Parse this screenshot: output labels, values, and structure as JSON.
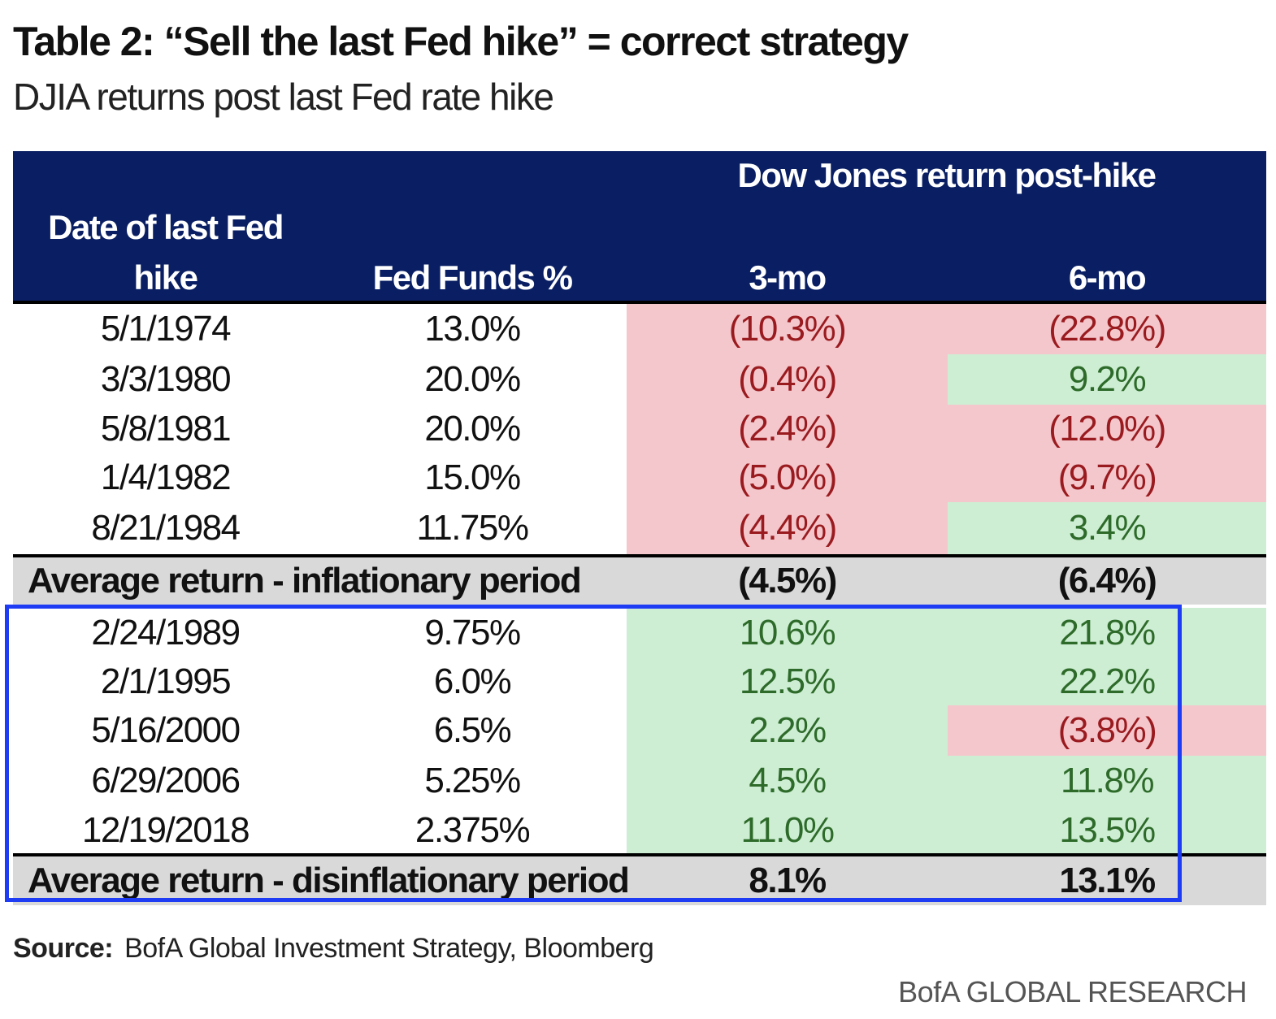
{
  "title": "Table 2: “Sell the last Fed hike” = correct strategy",
  "subtitle": "DJIA returns post last Fed rate hike",
  "headers": {
    "date_line1": "Date of last Fed",
    "date_line2": "hike",
    "fed_funds": "Fed Funds %",
    "group": "Dow Jones return post-hike",
    "three_mo": "3-mo",
    "six_mo": "6-mo"
  },
  "chart_data": {
    "type": "table",
    "columns": [
      "Date of last Fed hike",
      "Fed Funds %",
      "3-mo",
      "6-mo"
    ],
    "inflationary_rows": [
      {
        "date": "5/1/1974",
        "fed_funds": "13.0%",
        "three_mo": "(10.3%)",
        "six_mo": "(22.8%)",
        "three_mo_value": -10.3,
        "six_mo_value": -22.8
      },
      {
        "date": "3/3/1980",
        "fed_funds": "20.0%",
        "three_mo": "(0.4%)",
        "six_mo": "9.2%",
        "three_mo_value": -0.4,
        "six_mo_value": 9.2
      },
      {
        "date": "5/8/1981",
        "fed_funds": "20.0%",
        "three_mo": "(2.4%)",
        "six_mo": "(12.0%)",
        "three_mo_value": -2.4,
        "six_mo_value": -12.0
      },
      {
        "date": "1/4/1982",
        "fed_funds": "15.0%",
        "three_mo": "(5.0%)",
        "six_mo": "(9.7%)",
        "three_mo_value": -5.0,
        "six_mo_value": -9.7
      },
      {
        "date": "8/21/1984",
        "fed_funds": "11.75%",
        "three_mo": "(4.4%)",
        "six_mo": "3.4%",
        "three_mo_value": -4.4,
        "six_mo_value": 3.4
      }
    ],
    "inflationary_average": {
      "label": "Average return - inflationary period",
      "three_mo": "(4.5%)",
      "six_mo": "(6.4%)"
    },
    "disinflationary_rows": [
      {
        "date": "2/24/1989",
        "fed_funds": "9.75%",
        "three_mo": "10.6%",
        "six_mo": "21.8%",
        "three_mo_value": 10.6,
        "six_mo_value": 21.8
      },
      {
        "date": "2/1/1995",
        "fed_funds": "6.0%",
        "three_mo": "12.5%",
        "six_mo": "22.2%",
        "three_mo_value": 12.5,
        "six_mo_value": 22.2
      },
      {
        "date": "5/16/2000",
        "fed_funds": "6.5%",
        "three_mo": "2.2%",
        "six_mo": "(3.8%)",
        "three_mo_value": 2.2,
        "six_mo_value": -3.8
      },
      {
        "date": "6/29/2006",
        "fed_funds": "5.25%",
        "three_mo": "4.5%",
        "six_mo": "11.8%",
        "three_mo_value": 4.5,
        "six_mo_value": 11.8
      },
      {
        "date": "12/19/2018",
        "fed_funds": "2.375%",
        "three_mo": "11.0%",
        "six_mo": "13.5%",
        "three_mo_value": 11.0,
        "six_mo_value": 13.5
      }
    ],
    "disinflationary_average": {
      "label": "Average return - disinflationary period",
      "three_mo": "8.1%",
      "six_mo": "13.1%"
    }
  },
  "source_label": "Source:",
  "source_text": "BofA Global Investment Strategy, Bloomberg",
  "footer": "BofA GLOBAL RESEARCH",
  "colors": {
    "header_bg": "#0a1f63",
    "neg_bg": "#f4c7cc",
    "pos_bg": "#cdeed3",
    "highlight": "#1f3cf5"
  }
}
